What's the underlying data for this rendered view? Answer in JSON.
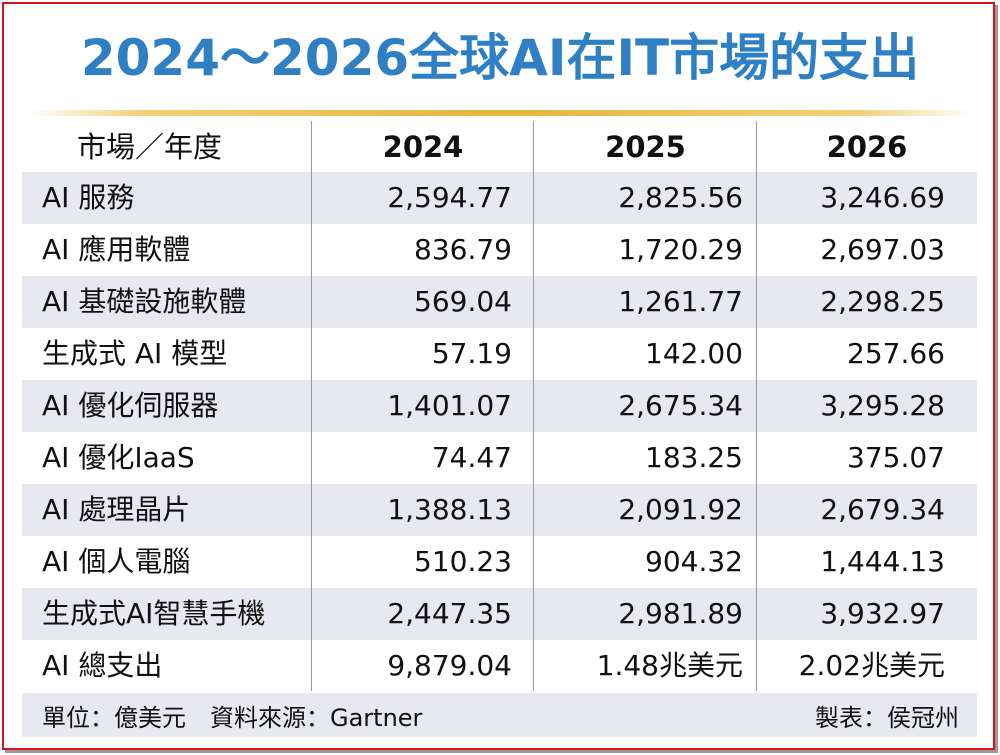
{
  "title": "2024～2026全球AI在IT市場的支出",
  "chart_data": {
    "type": "table",
    "title": "2024～2026全球AI在IT市場的支出",
    "columns": [
      "市場／年度",
      "2024",
      "2025",
      "2026"
    ],
    "rows": [
      {
        "label": "AI 服務",
        "values": [
          "2,594.77",
          "2,825.56",
          "3,246.69"
        ]
      },
      {
        "label": "AI 應用軟體",
        "values": [
          "836.79",
          "1,720.29",
          "2,697.03"
        ]
      },
      {
        "label": "AI 基礎設施軟體",
        "values": [
          "569.04",
          "1,261.77",
          "2,298.25"
        ]
      },
      {
        "label": "生成式 AI 模型",
        "values": [
          "57.19",
          "142.00",
          "257.66"
        ]
      },
      {
        "label": "AI 優化伺服器",
        "values": [
          "1,401.07",
          "2,675.34",
          "3,295.28"
        ]
      },
      {
        "label": "AI 優化IaaS",
        "values": [
          "74.47",
          "183.25",
          "375.07"
        ]
      },
      {
        "label": "AI 處理晶片",
        "values": [
          "1,388.13",
          "2,091.92",
          "2,679.34"
        ]
      },
      {
        "label": "AI 個人電腦",
        "values": [
          "510.23",
          "904.32",
          "1,444.13"
        ]
      },
      {
        "label": "生成式AI智慧手機",
        "values": [
          "2,447.35",
          "2,981.89",
          "3,932.97"
        ]
      },
      {
        "label": "AI 總支出",
        "values": [
          "9,879.04",
          "1.48兆美元",
          "2.02兆美元"
        ]
      }
    ],
    "unit": "單位：億美元",
    "source": "資料來源：Gartner",
    "credit": "製表：侯冠州"
  },
  "colors": {
    "title": "#2f7fc4",
    "border": "#e0101a",
    "row_shade": "#e7e8f0",
    "gold_rule": "#e7b53a"
  }
}
